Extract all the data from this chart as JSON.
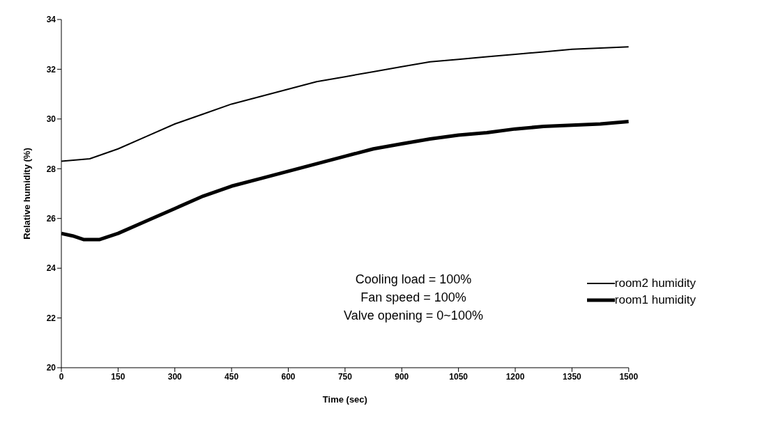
{
  "chart_data": {
    "type": "line",
    "xlabel": "Time (sec)",
    "ylabel": "Relative humidity (%)",
    "xlim": [
      0,
      1500
    ],
    "xticks": [
      0,
      150,
      300,
      450,
      600,
      750,
      900,
      1050,
      1200,
      1350,
      1500
    ],
    "ylim": [
      20,
      34
    ],
    "yticks": [
      20,
      22,
      24,
      26,
      28,
      30,
      32,
      34
    ],
    "grid": false,
    "legend": "right",
    "marker": "none",
    "line_style": "solid",
    "annotations": [
      "Cooling load = 100%",
      "Fan speed = 100%",
      "Valve opening = 0~100%"
    ],
    "series": [
      {
        "name": "room2 humidity",
        "color": "#000000",
        "x": [
          0,
          75,
          150,
          225,
          300,
          375,
          450,
          525,
          600,
          675,
          750,
          825,
          900,
          975,
          1050,
          1125,
          1200,
          1275,
          1350,
          1425,
          1500
        ],
        "values": [
          28.3,
          28.4,
          28.8,
          29.3,
          29.8,
          30.2,
          30.6,
          30.9,
          31.2,
          31.5,
          31.7,
          31.9,
          32.1,
          32.3,
          32.4,
          32.5,
          32.6,
          32.7,
          32.8,
          32.85,
          32.9
        ]
      },
      {
        "name": "room1 humidity",
        "color": "#000000",
        "x": [
          0,
          30,
          60,
          100,
          150,
          225,
          300,
          375,
          450,
          525,
          600,
          675,
          750,
          825,
          900,
          975,
          1050,
          1125,
          1200,
          1275,
          1350,
          1425,
          1500
        ],
        "values": [
          25.4,
          25.3,
          25.15,
          25.15,
          25.4,
          25.9,
          26.4,
          26.9,
          27.3,
          27.6,
          27.9,
          28.2,
          28.5,
          28.8,
          29.0,
          29.2,
          29.35,
          29.45,
          29.6,
          29.7,
          29.75,
          29.8,
          29.9
        ]
      }
    ]
  }
}
